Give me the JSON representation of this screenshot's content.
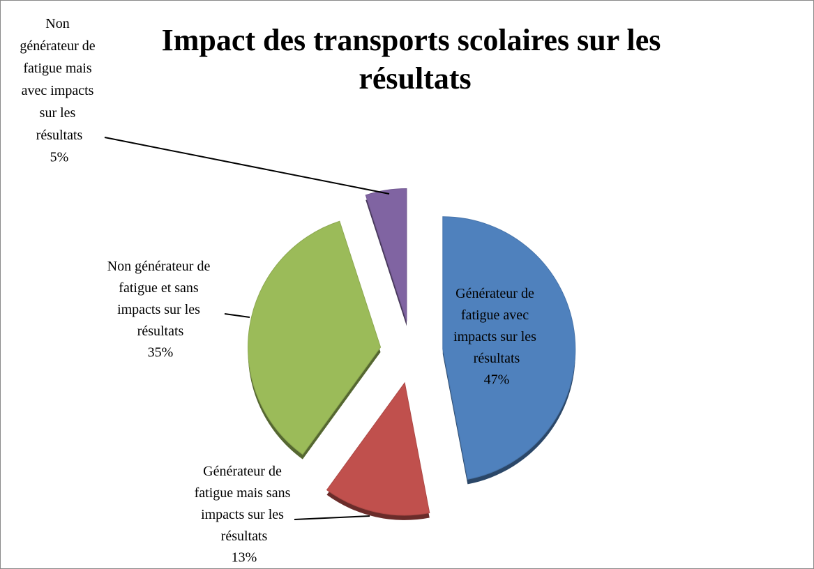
{
  "chart_data": {
    "type": "pie",
    "title": "Impact des transports scolaires sur les résultats",
    "categories": [
      "Générateur de fatigue avec impacts sur les résultats",
      "Générateur de fatigue mais sans impacts sur les résultats",
      "Non générateur de fatigue et sans impacts sur les résultats",
      "Non générateur de fatigue mais avec impacts sur les résultats"
    ],
    "values": [
      47,
      13,
      35,
      5
    ],
    "value_labels": [
      "47%",
      "13%",
      "35%",
      "5%"
    ],
    "colors": [
      "#4f81bd",
      "#c0504d",
      "#9bbb59",
      "#8064a2"
    ]
  }
}
